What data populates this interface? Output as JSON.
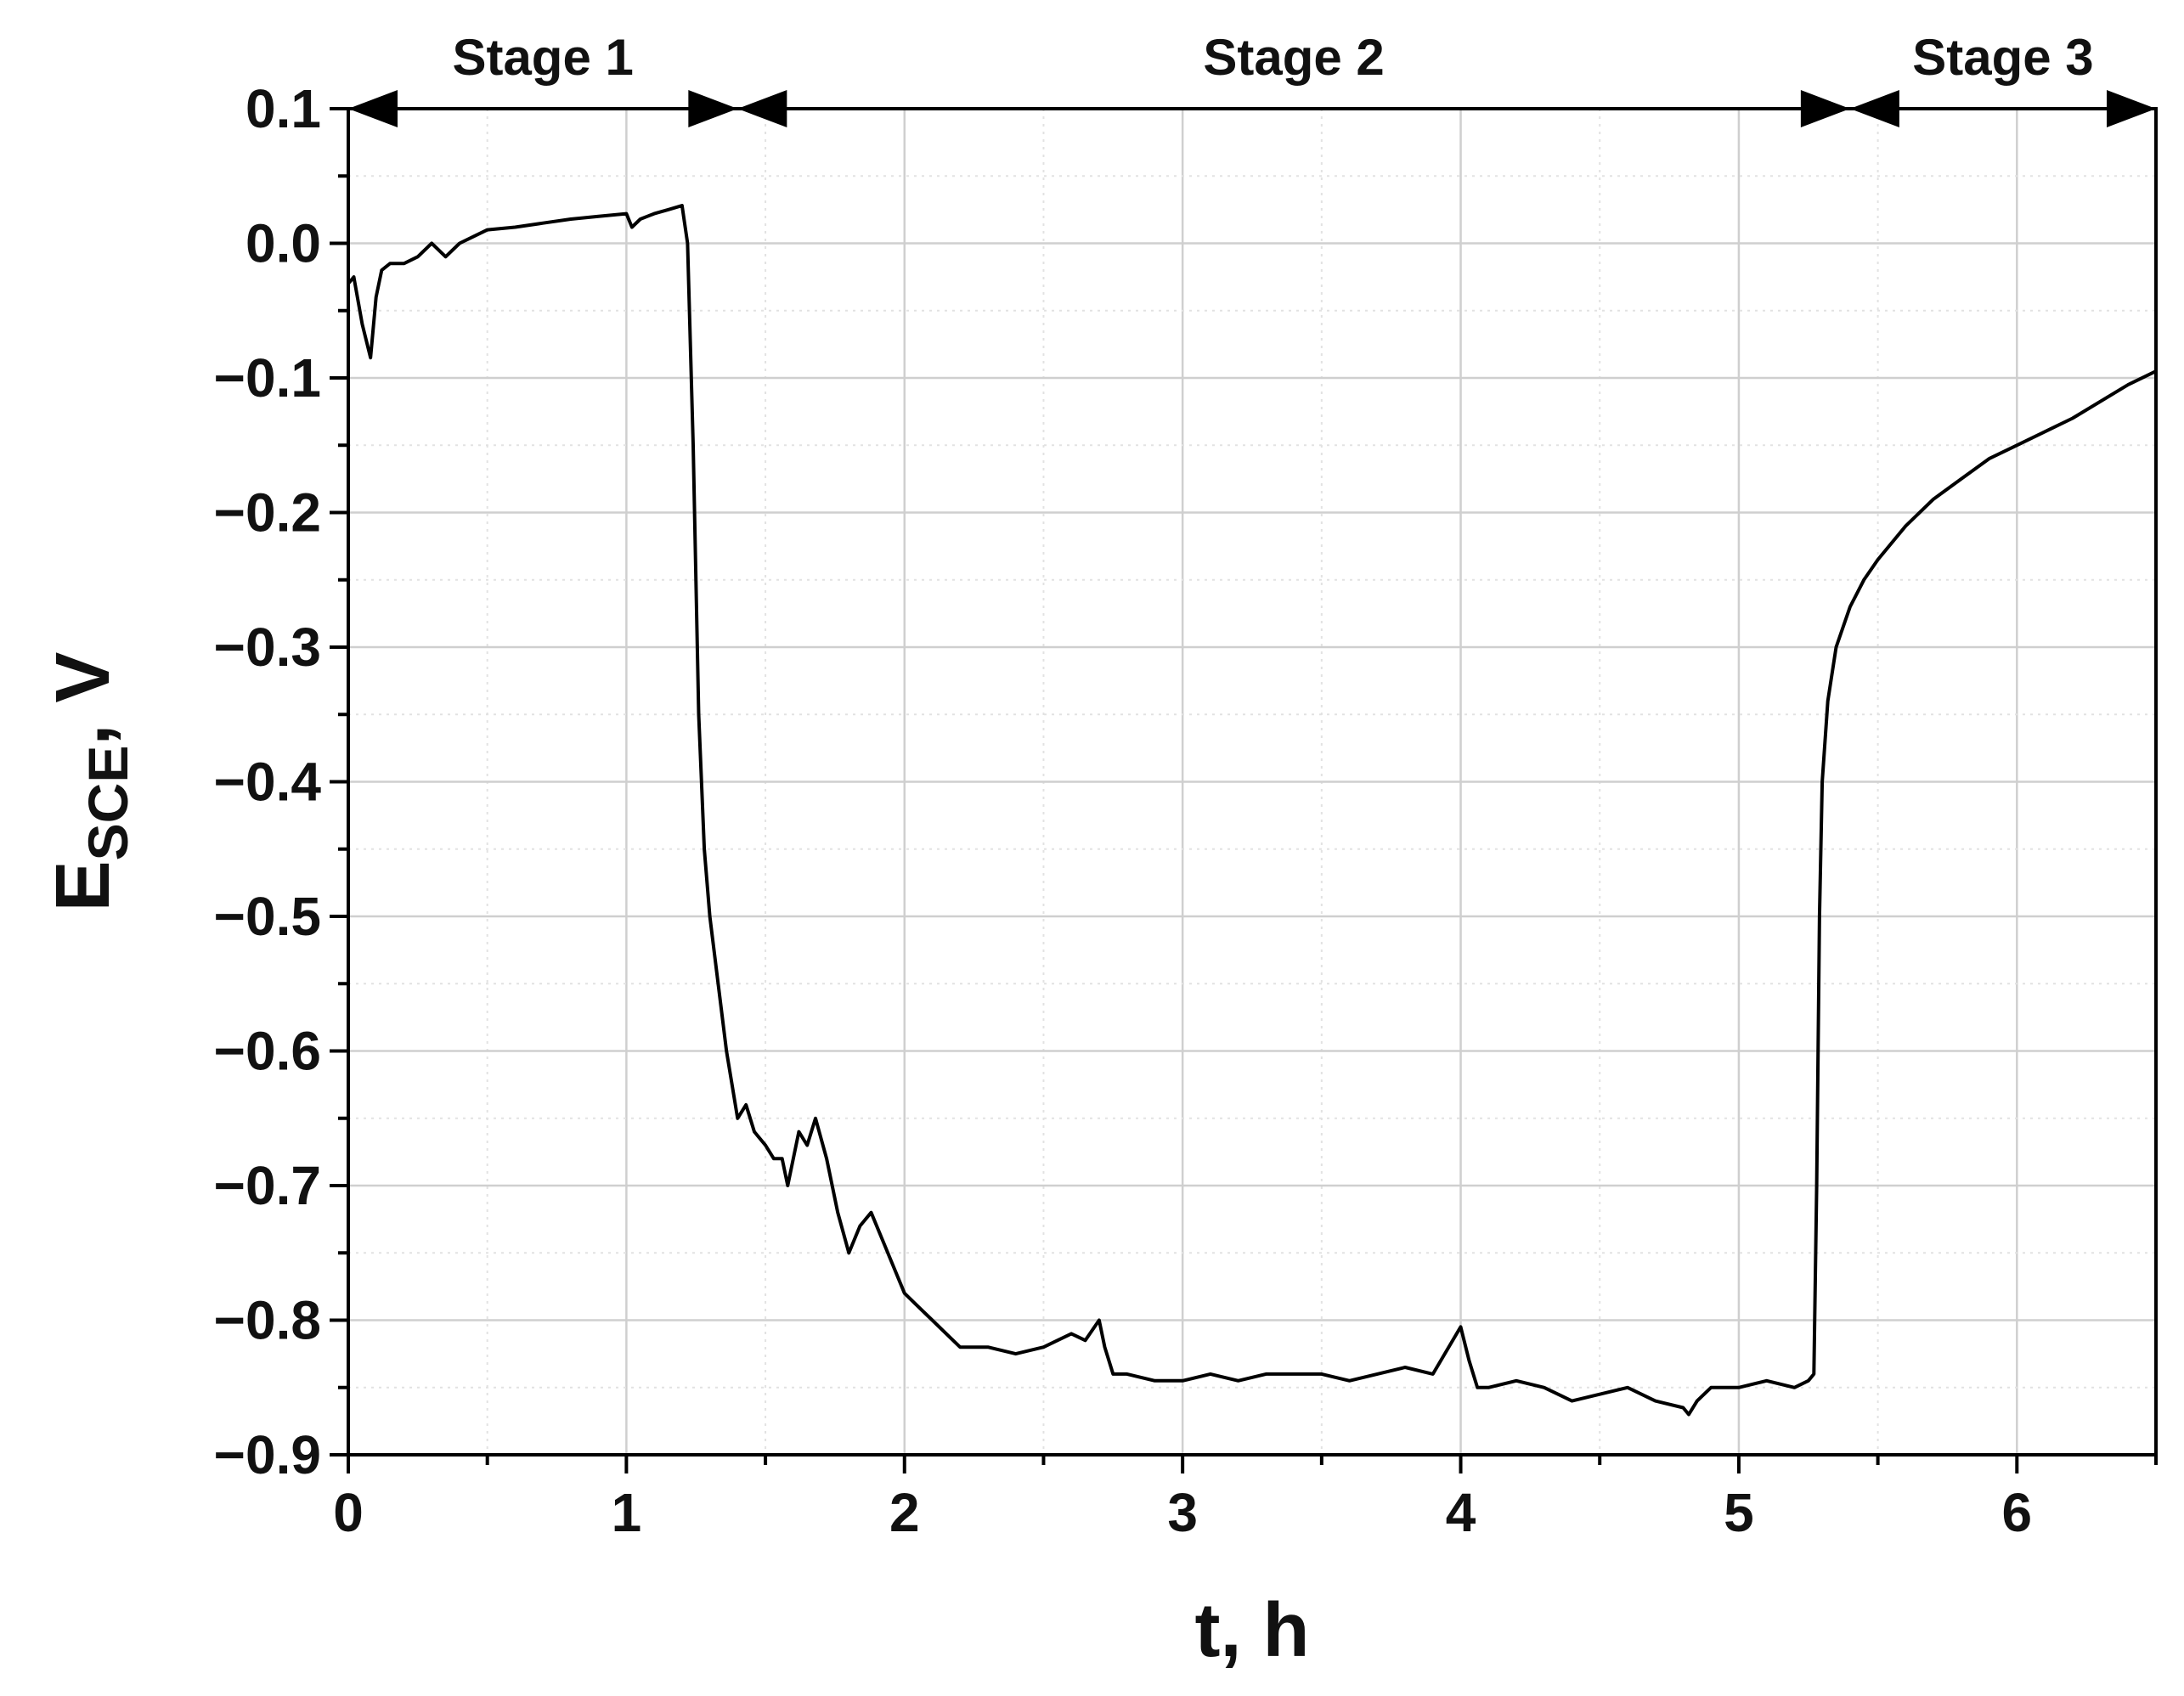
{
  "chart_data": {
    "type": "line",
    "title": "",
    "xlabel": "t, h",
    "ylabel": {
      "main": "E",
      "subscript": "SCE",
      "suffix": ", V"
    },
    "xlim": [
      0,
      6.5
    ],
    "ylim": [
      -0.9,
      0.1
    ],
    "x_ticks": [
      0,
      1,
      2,
      3,
      4,
      5,
      6
    ],
    "x_tick_labels": [
      "0",
      "1",
      "2",
      "3",
      "4",
      "5",
      "6"
    ],
    "y_ticks": [
      0.1,
      0.0,
      -0.1,
      -0.2,
      -0.3,
      -0.4,
      -0.5,
      -0.6,
      -0.7,
      -0.8,
      -0.9
    ],
    "y_tick_labels": [
      "0.1",
      "0.0",
      "−0.1",
      "−0.2",
      "−0.3",
      "−0.4",
      "−0.5",
      "−0.6",
      "−0.7",
      "−0.8",
      "−0.9"
    ],
    "grid": true,
    "line_color": "#000000",
    "stages": [
      {
        "label": "Stage 1",
        "x_start": 0,
        "x_end": 1.4
      },
      {
        "label": "Stage 2",
        "x_start": 1.4,
        "x_end": 5.4
      },
      {
        "label": "Stage 3",
        "x_start": 5.4,
        "x_end": 6.5
      }
    ],
    "series": [
      {
        "x": [
          0.0,
          0.02,
          0.05,
          0.08,
          0.1,
          0.12,
          0.15,
          0.2,
          0.25,
          0.3,
          0.35,
          0.4,
          0.45,
          0.5,
          0.6,
          0.7,
          0.8,
          0.9,
          1.0,
          1.02,
          1.05,
          1.1,
          1.15,
          1.2,
          1.22,
          1.24,
          1.26,
          1.28,
          1.3,
          1.33,
          1.36,
          1.4,
          1.43,
          1.46,
          1.5,
          1.53,
          1.56,
          1.58,
          1.62,
          1.65,
          1.68,
          1.72,
          1.76,
          1.8,
          1.84,
          1.88,
          1.92,
          1.96,
          2.0,
          2.05,
          2.1,
          2.15,
          2.2,
          2.3,
          2.4,
          2.5,
          2.55,
          2.6,
          2.65,
          2.7,
          2.72,
          2.75,
          2.8,
          2.9,
          3.0,
          3.1,
          3.2,
          3.3,
          3.4,
          3.5,
          3.6,
          3.7,
          3.8,
          3.9,
          4.0,
          4.03,
          4.06,
          4.1,
          4.2,
          4.3,
          4.4,
          4.5,
          4.6,
          4.7,
          4.8,
          4.82,
          4.85,
          4.9,
          5.0,
          5.1,
          5.2,
          5.25,
          5.27,
          5.28,
          5.29,
          5.3,
          5.32,
          5.35,
          5.4,
          5.45,
          5.5,
          5.6,
          5.7,
          5.8,
          5.9,
          6.0,
          6.2,
          6.4,
          6.5
        ],
        "y": [
          -0.03,
          -0.025,
          -0.06,
          -0.085,
          -0.04,
          -0.02,
          -0.015,
          -0.015,
          -0.01,
          0.0,
          -0.01,
          0.0,
          0.005,
          0.01,
          0.012,
          0.015,
          0.018,
          0.02,
          0.022,
          0.012,
          0.018,
          0.022,
          0.025,
          0.028,
          0.0,
          -0.15,
          -0.35,
          -0.45,
          -0.5,
          -0.55,
          -0.6,
          -0.65,
          -0.64,
          -0.66,
          -0.67,
          -0.68,
          -0.68,
          -0.7,
          -0.66,
          -0.67,
          -0.65,
          -0.68,
          -0.72,
          -0.75,
          -0.73,
          -0.72,
          -0.74,
          -0.76,
          -0.78,
          -0.79,
          -0.8,
          -0.81,
          -0.82,
          -0.82,
          -0.825,
          -0.82,
          -0.815,
          -0.81,
          -0.815,
          -0.8,
          -0.82,
          -0.84,
          -0.84,
          -0.845,
          -0.845,
          -0.84,
          -0.845,
          -0.84,
          -0.84,
          -0.84,
          -0.845,
          -0.84,
          -0.835,
          -0.84,
          -0.805,
          -0.83,
          -0.85,
          -0.85,
          -0.845,
          -0.85,
          -0.86,
          -0.855,
          -0.85,
          -0.86,
          -0.865,
          -0.87,
          -0.86,
          -0.85,
          -0.85,
          -0.845,
          -0.85,
          -0.845,
          -0.84,
          -0.7,
          -0.5,
          -0.4,
          -0.34,
          -0.3,
          -0.27,
          -0.25,
          -0.235,
          -0.21,
          -0.19,
          -0.175,
          -0.16,
          -0.15,
          -0.13,
          -0.105,
          -0.095
        ]
      }
    ]
  }
}
